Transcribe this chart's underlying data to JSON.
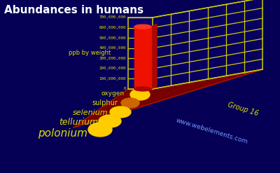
{
  "title": "Abundances in humans",
  "ylabel": "ppb by weight",
  "group_label": "Group 16",
  "website": "www.webelements.com",
  "elements": [
    "oxygen",
    "sulphur",
    "selenium",
    "tellurium",
    "polonium"
  ],
  "values": [
    610000000,
    2600000,
    190000,
    130000,
    0
  ],
  "bg_color": "#050055",
  "bar_color_front": "#ee1100",
  "bar_color_side": "#aa0800",
  "bar_color_top": "#ff3322",
  "grid_color": "#cccc00",
  "text_color": "#dddd00",
  "title_color": "#ffffff",
  "platform_color": "#770000",
  "platform_edge_color": "#aa1100",
  "dot_colors": [
    "#ffcc00",
    "#cc6600",
    "#ffcc00",
    "#ffcc00",
    "#ffcc00"
  ],
  "website_color": "#7799ff",
  "ylim": [
    0,
    700000000
  ],
  "ytick_labels": [
    "0",
    "100,000,000",
    "200,000,000",
    "300,000,000",
    "400,000,000",
    "500,000,000",
    "600,000,000",
    "700,000,000"
  ],
  "lw_grid": 0.9,
  "lw_border": 1.1
}
